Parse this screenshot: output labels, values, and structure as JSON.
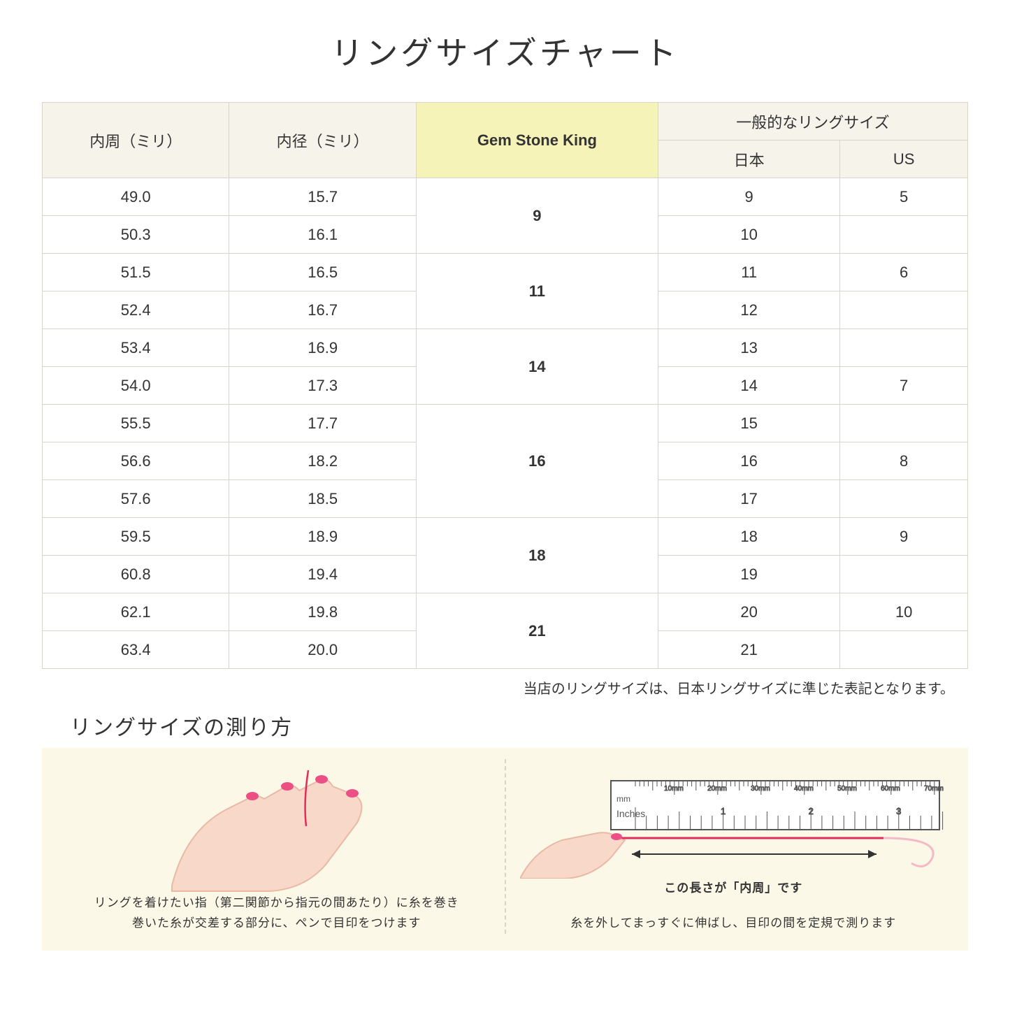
{
  "title": "リングサイズチャート",
  "headers": {
    "circumference": "内周（ミリ）",
    "diameter": "内径（ミリ）",
    "gsk": "Gem Stone King",
    "general": "一般的なリングサイズ",
    "japan": "日本",
    "us": "US"
  },
  "rows": [
    {
      "circ": "49.0",
      "dia": "15.7",
      "gsk": "9",
      "gsk_rowspan": 2,
      "jp": "9",
      "us": "5"
    },
    {
      "circ": "50.3",
      "dia": "16.1",
      "jp": "10",
      "us": ""
    },
    {
      "circ": "51.5",
      "dia": "16.5",
      "gsk": "11",
      "gsk_rowspan": 2,
      "jp": "11",
      "us": "6"
    },
    {
      "circ": "52.4",
      "dia": "16.7",
      "jp": "12",
      "us": ""
    },
    {
      "circ": "53.4",
      "dia": "16.9",
      "gsk": "14",
      "gsk_rowspan": 2,
      "jp": "13",
      "us": ""
    },
    {
      "circ": "54.0",
      "dia": "17.3",
      "jp": "14",
      "us": "7"
    },
    {
      "circ": "55.5",
      "dia": "17.7",
      "gsk": "16",
      "gsk_rowspan": 3,
      "jp": "15",
      "us": ""
    },
    {
      "circ": "56.6",
      "dia": "18.2",
      "jp": "16",
      "us": "8"
    },
    {
      "circ": "57.6",
      "dia": "18.5",
      "jp": "17",
      "us": ""
    },
    {
      "circ": "59.5",
      "dia": "18.9",
      "gsk": "18",
      "gsk_rowspan": 2,
      "jp": "18",
      "us": "9"
    },
    {
      "circ": "60.8",
      "dia": "19.4",
      "jp": "19",
      "us": ""
    },
    {
      "circ": "62.1",
      "dia": "19.8",
      "gsk": "21",
      "gsk_rowspan": 2,
      "jp": "20",
      "us": "10"
    },
    {
      "circ": "63.4",
      "dia": "20.0",
      "jp": "21",
      "us": ""
    }
  ],
  "note": "当店のリングサイズは、日本リングサイズに準じた表記となります。",
  "howto_title": "リングサイズの測り方",
  "panel_left": {
    "line1": "リングを着けたい指（第二関節から指元の間あたり）に糸を巻き",
    "line2": "巻いた糸が交差する部分に、ペンで目印をつけます"
  },
  "panel_right": {
    "arrow_label": "この長さが「内周」です",
    "line1": "糸を外してまっすぐに伸ばし、目印の間を定規で測ります",
    "ruler_mm": "mm",
    "ruler_inches": "Inches",
    "ruler_mm_ticks": [
      "10mm",
      "20mm",
      "30mm",
      "40mm",
      "50mm",
      "60mm",
      "70mm"
    ]
  },
  "colors": {
    "header_bg": "#f6f3ea",
    "gsk_bg": "#f6f3b8",
    "border": "#d8d4c8",
    "howto_bg": "#fbf8e8",
    "hand_skin": "#f7d8c9",
    "hand_outline": "#e9b9a6",
    "nail": "#ec4f84",
    "thread": "#e12d5a"
  }
}
